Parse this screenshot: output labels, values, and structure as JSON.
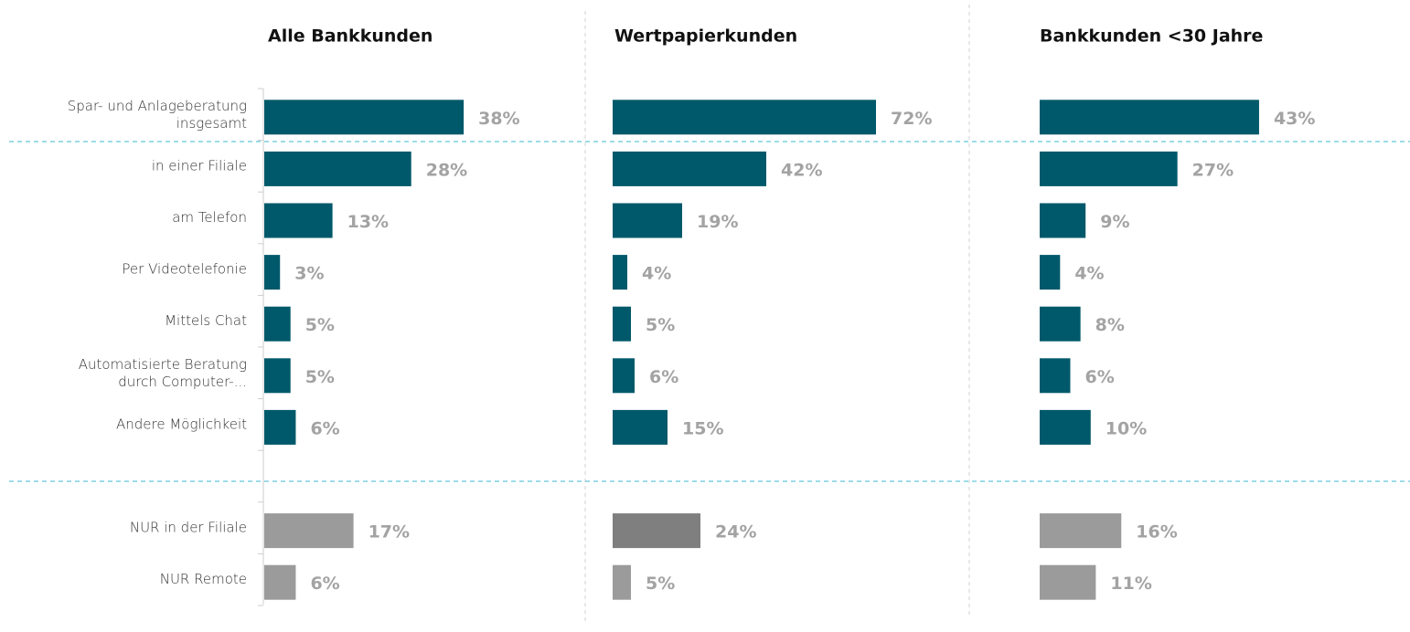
{
  "chart_data": {
    "type": "bar",
    "categories": [
      "Spar- und Anlageberatung\ninsgesamt",
      "in einer Filiale",
      "am Telefon",
      "Per Videotelefonie",
      "Mittels Chat",
      "Automatisierte Beratung\ndurch Computer-...",
      "Andere Möglichkeit",
      null,
      "NUR in der Filiale",
      "NUR Remote"
    ],
    "series": [
      {
        "name": "Alle Bankkunden",
        "values": [
          38,
          28,
          13,
          3,
          5,
          5,
          6,
          null,
          17,
          6
        ],
        "value_labels": [
          "38%",
          "28%",
          "13%",
          "3%",
          "5%",
          "5%",
          "6%",
          null,
          "17%",
          "6%"
        ],
        "colors": [
          "#00596a",
          "#00596a",
          "#00596a",
          "#00596a",
          "#00596a",
          "#00596a",
          "#00596a",
          null,
          "#9b9b9b",
          "#9b9b9b"
        ]
      },
      {
        "name": "Wertpapierkunden",
        "values": [
          72,
          42,
          19,
          4,
          5,
          6,
          15,
          null,
          24,
          5
        ],
        "value_labels": [
          "72%",
          "42%",
          "19%",
          "4%",
          "5%",
          "6%",
          "15%",
          null,
          "24%",
          "5%"
        ],
        "colors": [
          "#00596a",
          "#00596a",
          "#00596a",
          "#00596a",
          "#00596a",
          "#00596a",
          "#00596a",
          null,
          "#7f7f7f",
          "#9b9b9b"
        ]
      },
      {
        "name": "Bankkunden <30 Jahre",
        "values": [
          43,
          27,
          9,
          4,
          8,
          6,
          10,
          null,
          16,
          11
        ],
        "value_labels": [
          "43%",
          "27%",
          "9%",
          "4%",
          "8%",
          "6%",
          "10%",
          null,
          "16%",
          "11%"
        ],
        "colors": [
          "#00596a",
          "#00596a",
          "#00596a",
          "#00596a",
          "#00596a",
          "#00596a",
          "#00596a",
          null,
          "#9b9b9b",
          "#9b9b9b"
        ]
      }
    ]
  }
}
